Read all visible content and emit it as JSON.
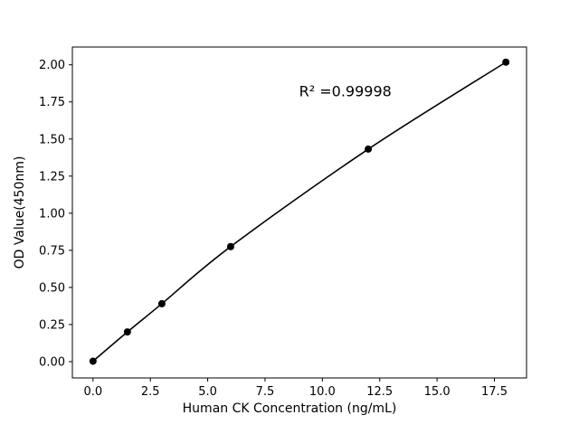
{
  "figure": {
    "background_color": "#ffffff",
    "axis_color": "#000000",
    "line_color": "#000000",
    "marker_color": "#000000",
    "text_color": "#000000"
  },
  "chart_data": {
    "type": "line",
    "title": "",
    "xlabel": "Human CK Concentration (ng/mL)",
    "ylabel": "OD Value(450nm)",
    "series": [
      {
        "name": "standard-curve",
        "x": [
          0,
          1.5,
          3,
          6,
          12,
          18
        ],
        "y": [
          0.003,
          0.2,
          0.39,
          0.775,
          1.432,
          2.018
        ]
      }
    ],
    "xlim": [
      -0.9,
      18.9
    ],
    "ylim": [
      -0.11,
      2.12
    ],
    "xticks": [
      0.0,
      2.5,
      5.0,
      7.5,
      10.0,
      12.5,
      15.0,
      17.5
    ],
    "yticks": [
      0.0,
      0.25,
      0.5,
      0.75,
      1.0,
      1.25,
      1.5,
      1.75,
      2.0
    ],
    "xtick_labels": [
      "0.0",
      "2.5",
      "5.0",
      "7.5",
      "10.0",
      "12.5",
      "15.0",
      "17.5"
    ],
    "ytick_labels": [
      "0.00",
      "0.25",
      "0.50",
      "0.75",
      "1.00",
      "1.25",
      "1.50",
      "1.75",
      "2.00"
    ],
    "grid": false,
    "legend": null,
    "marker": "circle",
    "marker_radius": 4,
    "line_width": 1.6,
    "annotation": {
      "text": "R² =0.99998",
      "x": 11.0,
      "y": 1.82
    }
  }
}
